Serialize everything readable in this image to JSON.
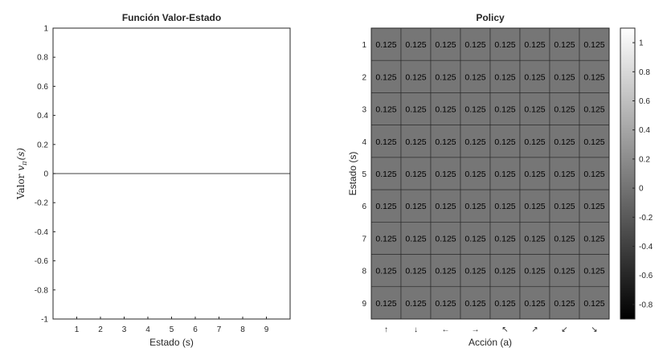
{
  "chart_data": [
    {
      "type": "line",
      "title": "Función Valor-Estado",
      "xlabel": "Estado (s)",
      "ylabel": "Valor v_π(s)",
      "ylabel_prefix": "Valor",
      "ylabel_math": "v",
      "ylabel_sub": "π",
      "ylabel_arg": "(s)",
      "x_ticks": [
        "1",
        "2",
        "3",
        "4",
        "5",
        "6",
        "7",
        "8",
        "9"
      ],
      "y_ticks": [
        "1",
        "0.8",
        "0.6",
        "0.4",
        "0.2",
        "0",
        "-0.2",
        "-0.4",
        "-0.6",
        "-0.8",
        "-1"
      ],
      "xlim": [
        0,
        10
      ],
      "ylim": [
        -1,
        1
      ],
      "series": [
        {
          "x": [
            0,
            10
          ],
          "y": [
            0,
            0
          ]
        }
      ],
      "grid": false,
      "line_color": "#000000"
    },
    {
      "type": "heatmap",
      "title": "Policy",
      "xlabel": "Acción (a)",
      "ylabel": "Estado (s)",
      "row_labels": [
        "1",
        "2",
        "3",
        "4",
        "5",
        "6",
        "7",
        "8",
        "9"
      ],
      "col_labels": [
        "↑",
        "↓",
        "←",
        "→",
        "↖",
        "↗",
        "↙",
        "↘"
      ],
      "values": [
        [
          0.125,
          0.125,
          0.125,
          0.125,
          0.125,
          0.125,
          0.125,
          0.125
        ],
        [
          0.125,
          0.125,
          0.125,
          0.125,
          0.125,
          0.125,
          0.125,
          0.125
        ],
        [
          0.125,
          0.125,
          0.125,
          0.125,
          0.125,
          0.125,
          0.125,
          0.125
        ],
        [
          0.125,
          0.125,
          0.125,
          0.125,
          0.125,
          0.125,
          0.125,
          0.125
        ],
        [
          0.125,
          0.125,
          0.125,
          0.125,
          0.125,
          0.125,
          0.125,
          0.125
        ],
        [
          0.125,
          0.125,
          0.125,
          0.125,
          0.125,
          0.125,
          0.125,
          0.125
        ],
        [
          0.125,
          0.125,
          0.125,
          0.125,
          0.125,
          0.125,
          0.125,
          0.125
        ],
        [
          0.125,
          0.125,
          0.125,
          0.125,
          0.125,
          0.125,
          0.125,
          0.125
        ],
        [
          0.125,
          0.125,
          0.125,
          0.125,
          0.125,
          0.125,
          0.125,
          0.125
        ]
      ],
      "value_labels": "0.125",
      "colorbar": {
        "colormap": "gray",
        "range": [
          -0.9,
          1.1
        ],
        "ticks": [
          "1",
          "0.8",
          "0.6",
          "0.4",
          "0.2",
          "0",
          "-0.2",
          "-0.4",
          "-0.6",
          "-0.8"
        ]
      },
      "cell_color": "#767676"
    }
  ]
}
